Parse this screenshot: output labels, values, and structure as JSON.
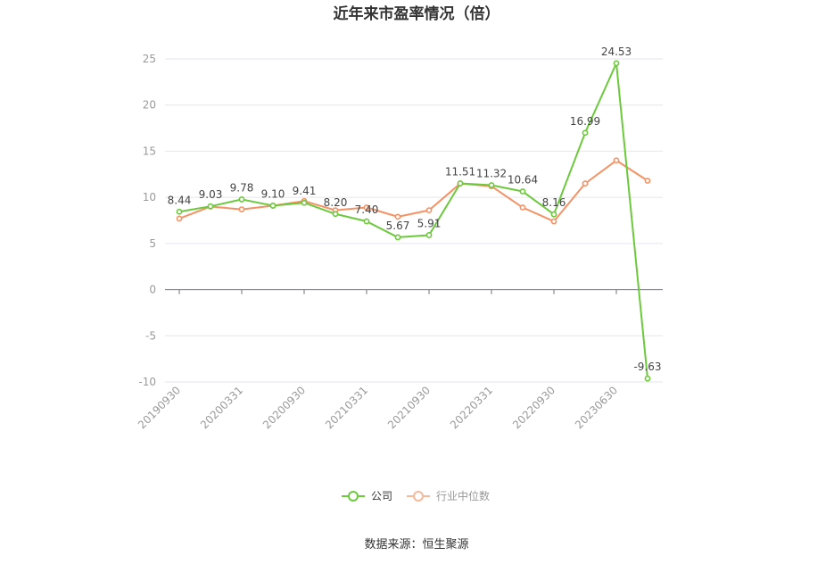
{
  "chart_data": {
    "type": "line",
    "title": "近年来市盈率情况（倍）",
    "source": "数据来源：恒生聚源",
    "ylim": [
      -10,
      25
    ],
    "yticks": [
      "25",
      "20",
      "15",
      "10",
      "5",
      "0",
      "-5",
      "-10"
    ],
    "x_labels": [
      "20190930",
      "20200331",
      "20200930",
      "20210331",
      "20210930",
      "20220331",
      "20220930",
      "20230630"
    ],
    "x_label_points": [
      0,
      2,
      4,
      6,
      8,
      10,
      12,
      14
    ],
    "point_count": 16,
    "grid": true,
    "legend_position": "bottom-center",
    "series": [
      {
        "name": "公司",
        "color": "#6cc93c",
        "values": [
          8.44,
          9.03,
          9.78,
          9.1,
          9.41,
          8.2,
          7.4,
          5.67,
          5.91,
          11.51,
          11.32,
          10.64,
          8.16,
          16.99,
          24.53,
          -9.63
        ],
        "labels": [
          "8.44",
          "9.03",
          "9.78",
          "9.10",
          "9.41",
          "8.20",
          "7.40",
          "5.67",
          "5.91",
          "11.51",
          "11.32",
          "10.64",
          "8.16",
          "16.99",
          "24.53",
          "-9.63"
        ]
      },
      {
        "name": "行业中位数",
        "color": "#f59265",
        "values": [
          7.7,
          9.0,
          8.7,
          9.1,
          9.6,
          8.6,
          8.9,
          7.9,
          8.6,
          11.5,
          11.2,
          8.9,
          7.4,
          11.5,
          14.0,
          11.8
        ]
      }
    ]
  }
}
